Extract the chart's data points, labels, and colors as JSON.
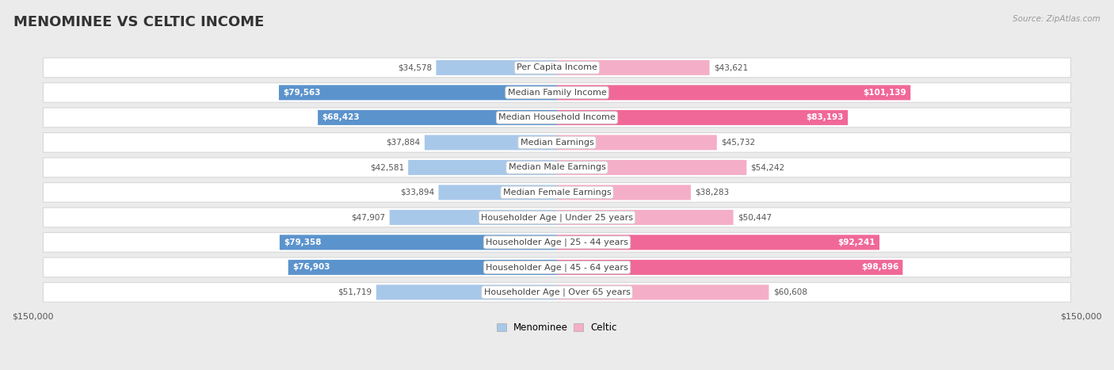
{
  "title": "MENOMINEE VS CELTIC INCOME",
  "source": "Source: ZipAtlas.com",
  "categories": [
    "Per Capita Income",
    "Median Family Income",
    "Median Household Income",
    "Median Earnings",
    "Median Male Earnings",
    "Median Female Earnings",
    "Householder Age | Under 25 years",
    "Householder Age | 25 - 44 years",
    "Householder Age | 45 - 64 years",
    "Householder Age | Over 65 years"
  ],
  "menominee_values": [
    34578,
    79563,
    68423,
    37884,
    42581,
    33894,
    47907,
    79358,
    76903,
    51719
  ],
  "celtic_values": [
    43621,
    101139,
    83193,
    45732,
    54242,
    38283,
    50447,
    92241,
    98896,
    60608
  ],
  "menominee_color_light": "#a8c8ea",
  "menominee_color_dark": "#5b93cc",
  "celtic_color_light": "#f5aec8",
  "celtic_color_dark": "#f06898",
  "axis_limit": 150000,
  "dark_threshold": 65000,
  "legend_menominee": "Menominee",
  "legend_celtic": "Celtic",
  "background_color": "#ebebeb",
  "row_bg_color": "#ffffff",
  "title_fontsize": 13,
  "label_fontsize": 8,
  "value_fontsize": 7.5,
  "axis_label_fontsize": 8
}
